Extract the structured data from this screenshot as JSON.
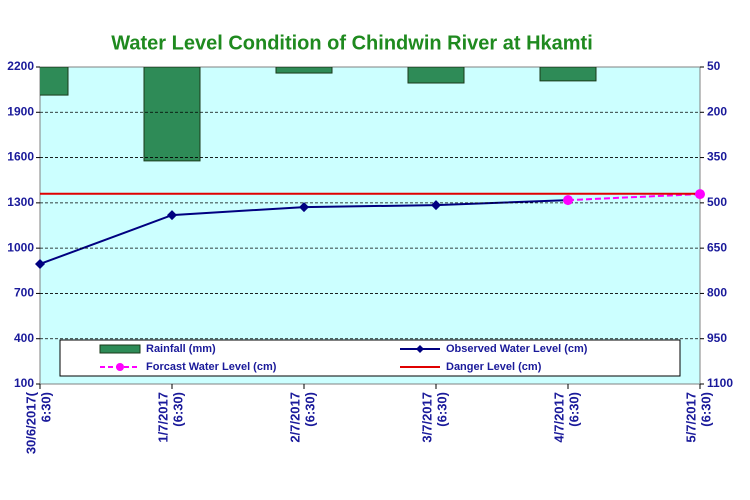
{
  "chart_data": {
    "type": "combo",
    "title": "Water Level Condition of Chindwin River at Hkamti",
    "categories": [
      "30/6/2017(\n6:30)",
      "1/7/2017\n(6:30)",
      "2/7/2017\n(6:30)",
      "3/7/2017\n(6:30)",
      "4/7/2017\n(6:30)",
      "5/7/2017\n(6:30)"
    ],
    "ylim": [
      100,
      2200
    ],
    "yticks": [
      100,
      400,
      700,
      1000,
      1300,
      1600,
      1900,
      2200
    ],
    "y2lim": [
      50,
      1100
    ],
    "y2ticks": [
      50,
      200,
      350,
      500,
      650,
      800,
      950,
      1100
    ],
    "y2_reversed": true,
    "grid": true,
    "series": [
      {
        "name": "Rainfall (mm)",
        "type": "bar",
        "axis": "y2",
        "color": "#2e8b57",
        "values": [
          143,
          361,
          70,
          103,
          96,
          null
        ]
      },
      {
        "name": "Observed Water Level (cm)",
        "type": "line",
        "color": "#000080",
        "values": [
          895,
          1219,
          1272,
          1285,
          1318,
          null
        ]
      },
      {
        "name": "Forcast Water Level (cm)",
        "type": "dashed",
        "color": "#ff00ff",
        "values": [
          null,
          null,
          null,
          null,
          1318,
          1358
        ]
      },
      {
        "name": "Danger Level (cm)",
        "type": "plain",
        "color": "#e00000",
        "values": [
          1360,
          1360,
          1360,
          1360,
          1360,
          1360
        ]
      }
    ]
  }
}
